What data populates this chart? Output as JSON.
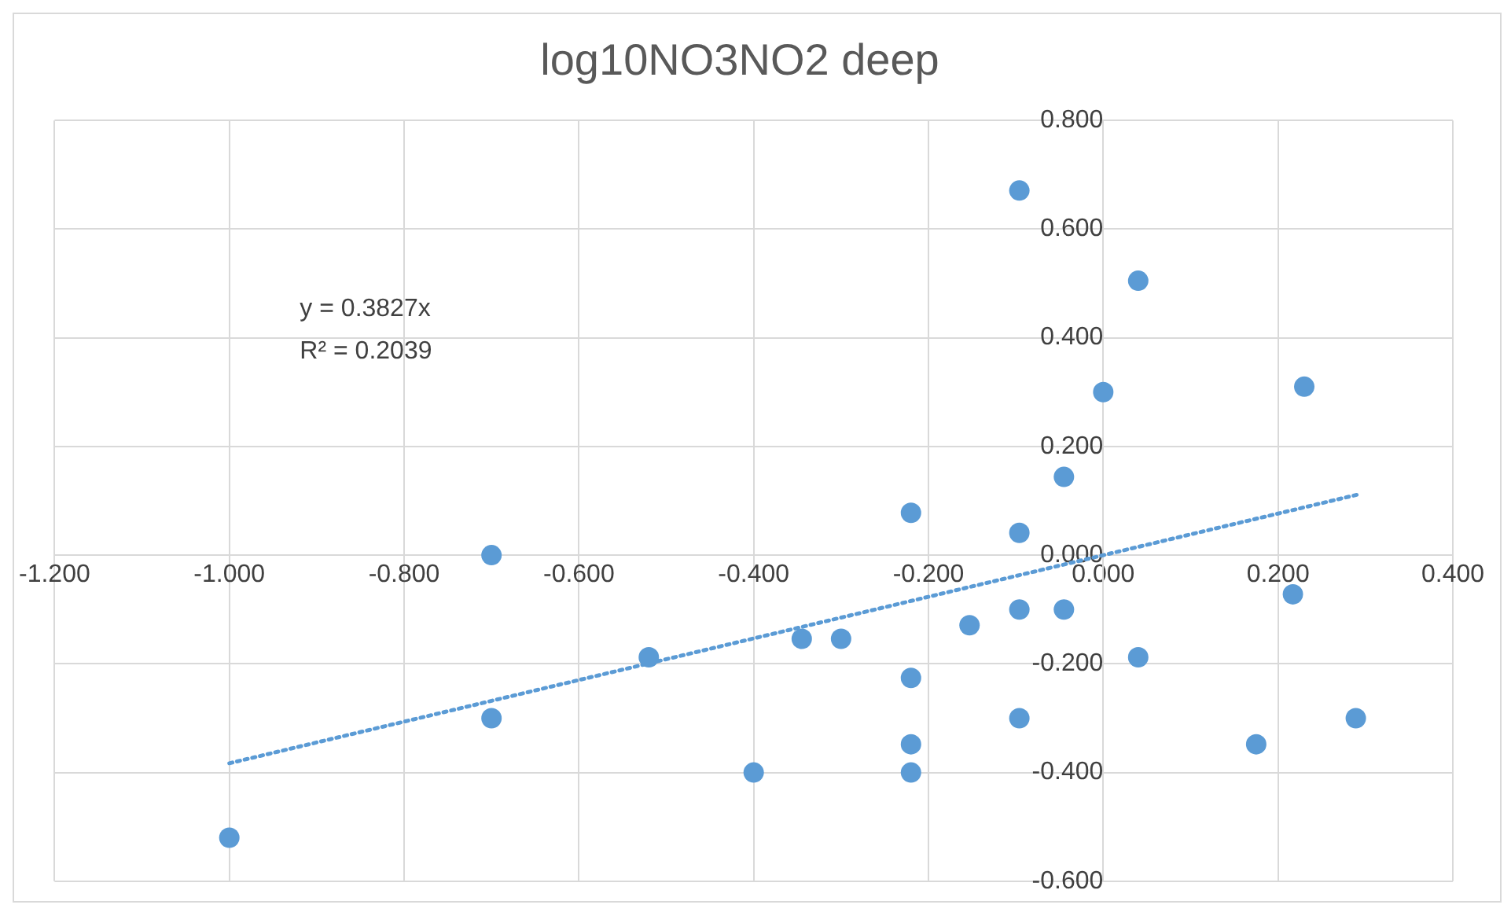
{
  "chart_data": {
    "type": "scatter",
    "title": "log10NO3NO2 deep",
    "series": [
      {
        "type": "scatter",
        "color": "#5b9bd5",
        "marker": "circle",
        "x": [
          -1.0,
          -0.7,
          -0.7,
          -0.52,
          -0.4,
          -0.345,
          -0.3,
          -0.22,
          -0.22,
          -0.22,
          -0.22,
          -0.153,
          -0.096,
          -0.096,
          -0.096,
          -0.096,
          -0.045,
          -0.045,
          0.0,
          0.04,
          0.04,
          0.175,
          0.217,
          0.23,
          0.289
        ],
        "values": [
          -0.52,
          0.0,
          -0.3,
          -0.188,
          -0.4,
          -0.154,
          -0.154,
          0.078,
          -0.226,
          -0.348,
          -0.4,
          -0.129,
          0.671,
          0.041,
          -0.1,
          -0.3,
          0.144,
          -0.1,
          0.3,
          0.505,
          -0.188,
          -0.348,
          -0.072,
          0.31,
          -0.3
        ]
      },
      {
        "type": "line",
        "color": "#5b9bd5",
        "marker": "none",
        "line_style": "dotted",
        "x": [
          -1.0,
          0.29
        ],
        "values": [
          -0.383,
          0.111
        ]
      }
    ],
    "annotations": [
      "y = 0.3827x",
      "R² = 0.2039"
    ],
    "xlim": [
      -1.2,
      0.4
    ],
    "xticks": [
      {
        "value": -1.2,
        "label": "-1.200"
      },
      {
        "value": -1.0,
        "label": "-1.000"
      },
      {
        "value": -0.8,
        "label": "-0.800"
      },
      {
        "value": -0.6,
        "label": "-0.600"
      },
      {
        "value": -0.4,
        "label": "-0.400"
      },
      {
        "value": -0.2,
        "label": "-0.200"
      },
      {
        "value": 0,
        "label": "0.000"
      },
      {
        "value": 0.2,
        "label": "0.200"
      },
      {
        "value": 0.4,
        "label": "0.400"
      }
    ],
    "ylim": [
      -0.6,
      0.8
    ],
    "yticks": [
      {
        "value": -0.6,
        "label": "-0.600"
      },
      {
        "value": -0.4,
        "label": "-0.400"
      },
      {
        "value": -0.2,
        "label": "-0.200"
      },
      {
        "value": 0,
        "label": "0.000"
      },
      {
        "value": 0.2,
        "label": "0.200"
      },
      {
        "value": 0.4,
        "label": "0.400"
      },
      {
        "value": 0.6,
        "label": "0.600"
      },
      {
        "value": 0.8,
        "label": "0.800"
      }
    ],
    "grid": true,
    "legend": false
  }
}
